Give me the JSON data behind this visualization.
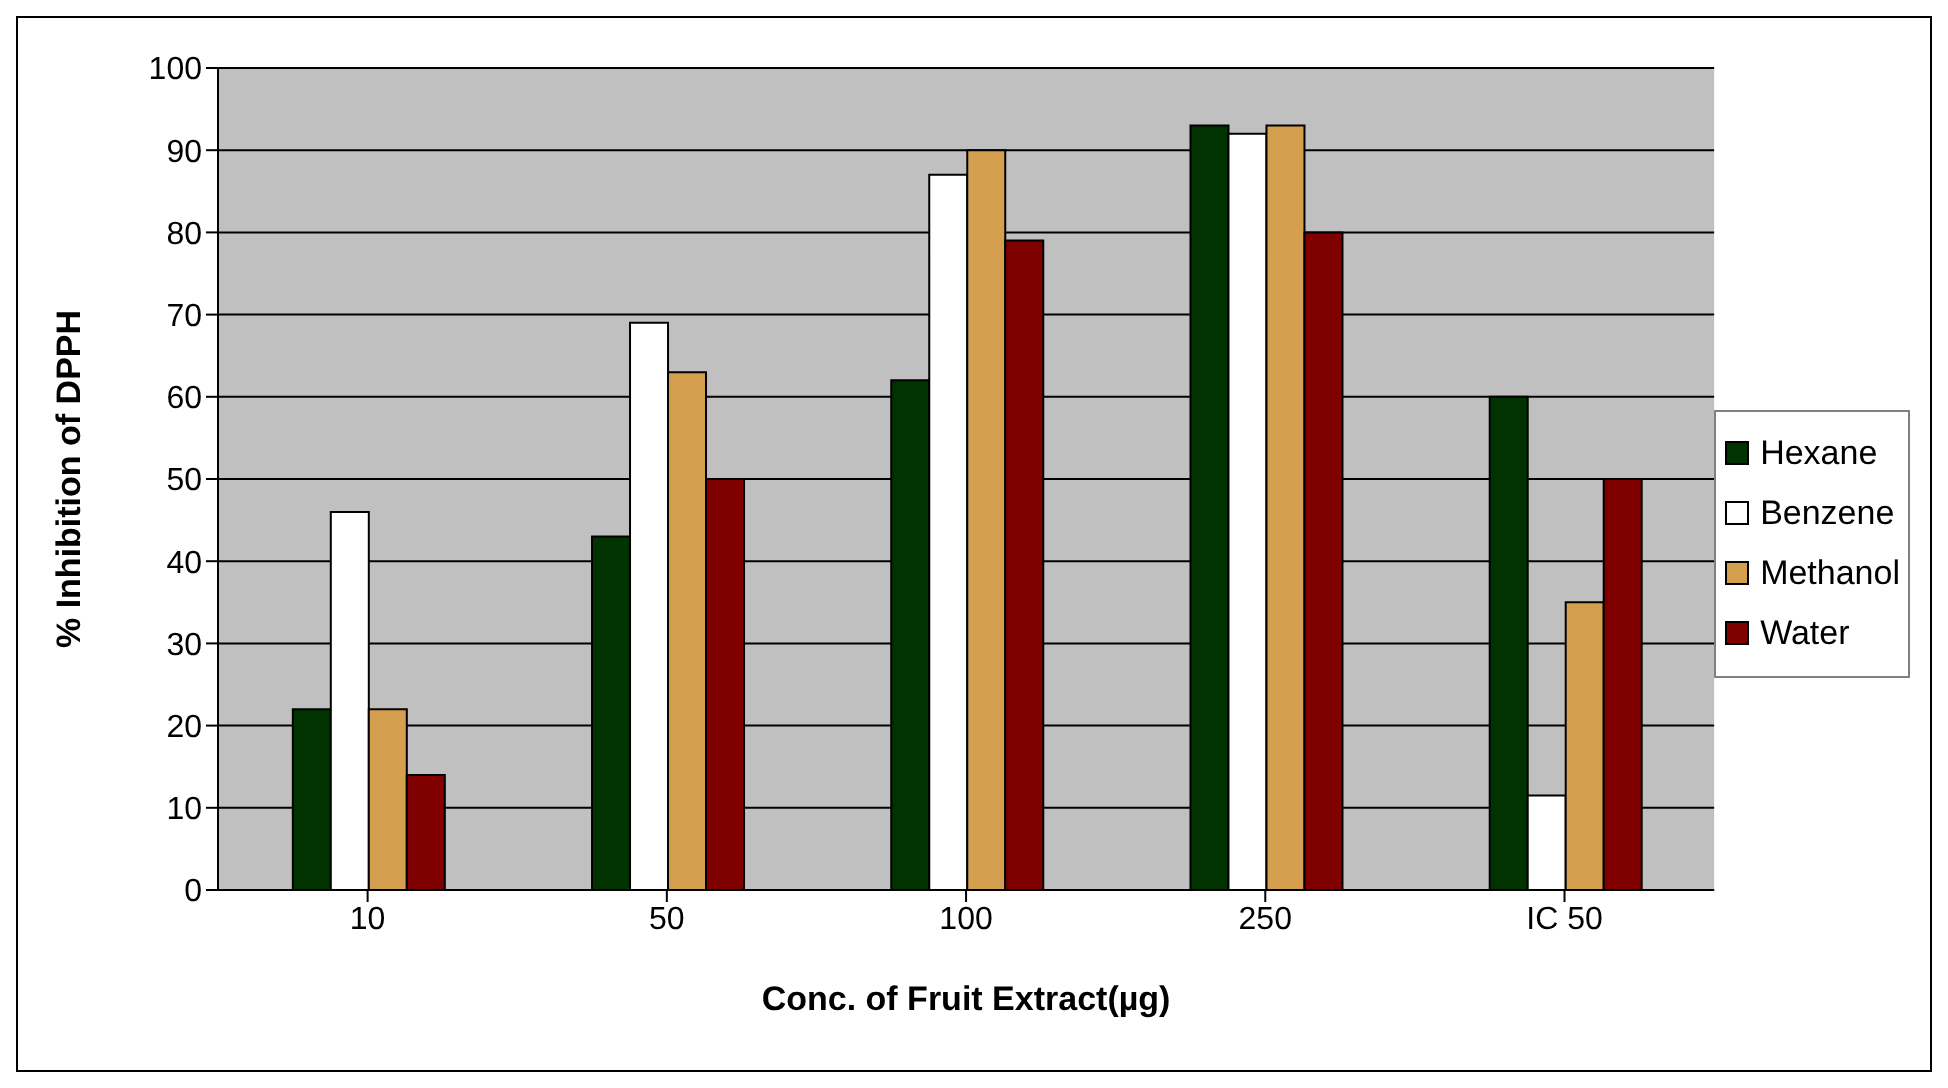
{
  "chart_data": {
    "type": "bar",
    "xlabel": "Conc. of Fruit Extract(µg)",
    "ylabel": "% Inhibition of DPPH",
    "categories": [
      "10",
      "50",
      "100",
      "250",
      "IC 50"
    ],
    "series": [
      {
        "name": "Hexane",
        "color": "#003300",
        "values": [
          22,
          43,
          62,
          93,
          60
        ]
      },
      {
        "name": "Benzene",
        "color": "#ffffff",
        "values": [
          46,
          69,
          87,
          92,
          11.5
        ]
      },
      {
        "name": "Methanol",
        "color": "#d4a050",
        "values": [
          22,
          63,
          90,
          93,
          35
        ]
      },
      {
        "name": "Water",
        "color": "#800000",
        "values": [
          14,
          50,
          79,
          80,
          50
        ]
      }
    ],
    "ylim": [
      0,
      100
    ],
    "yticks": [
      0,
      10,
      20,
      30,
      40,
      50,
      60,
      70,
      80,
      90,
      100
    ],
    "grid": "y",
    "legend": "right"
  }
}
